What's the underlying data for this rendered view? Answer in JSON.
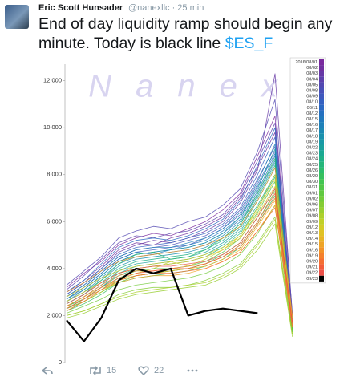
{
  "tweet": {
    "author": "Eric Scott Hunsader",
    "handle_line": "@nanexllc · 25 min",
    "text": "End of day liquidity ramp should begin any minute. Today is black line ",
    "hashtag": "$ES_F",
    "retweets": 15,
    "likes": 22
  },
  "chart_data": {
    "type": "line",
    "watermark": "Nanex",
    "ylim": [
      0,
      12500
    ],
    "yticks": [
      0,
      {
        "value": 2000,
        "label": "2,000"
      },
      {
        "value": 4000,
        "label": "4,000"
      },
      {
        "value": 6000,
        "label": "6,000"
      },
      {
        "value": 8000,
        "label": "8,000"
      },
      {
        "value": 10000,
        "label": "10,000"
      },
      {
        "value": 12000,
        "label": "12,000"
      }
    ],
    "series": [
      {
        "name": "2016/08/01",
        "color": "#7a2a9e",
        "values": [
          3200,
          3800,
          4300,
          5000,
          5300,
          5500,
          5400,
          5700,
          6000,
          6500,
          7200,
          8800,
          10500,
          1900,
          null,
          700
        ]
      },
      {
        "name": "08/02",
        "color": "#70309f",
        "values": [
          3000,
          3500,
          4100,
          4800,
          5100,
          5000,
          5300,
          5500,
          5800,
          6200,
          7000,
          8300,
          9800,
          1700,
          null,
          650
        ]
      },
      {
        "name": "08/03",
        "color": "#6638a5",
        "values": [
          2900,
          3400,
          4000,
          4700,
          5000,
          5200,
          5100,
          5300,
          5600,
          6000,
          6800,
          8200,
          12300,
          2000,
          null,
          800
        ]
      },
      {
        "name": "08/04",
        "color": "#5c40ab",
        "values": [
          3100,
          3700,
          4400,
          5100,
          5400,
          5300,
          5500,
          5600,
          5900,
          6300,
          7100,
          8600,
          10200,
          1800,
          null,
          700
        ]
      },
      {
        "name": "08/05",
        "color": "#5248b1",
        "values": [
          3300,
          3900,
          4500,
          5300,
          5600,
          5800,
          5700,
          6000,
          6200,
          6700,
          7400,
          9000,
          11200,
          2100,
          null,
          900
        ]
      },
      {
        "name": "08/08",
        "color": "#4850b7",
        "values": [
          2800,
          3300,
          3900,
          4500,
          4800,
          4900,
          5000,
          5200,
          5400,
          5800,
          6500,
          7800,
          9200,
          1600,
          null,
          600
        ]
      },
      {
        "name": "08/09",
        "color": "#3e58bd",
        "values": [
          2700,
          3200,
          3800,
          4400,
          4700,
          4800,
          4900,
          5000,
          5300,
          5700,
          6300,
          7600,
          9000,
          1500,
          null,
          550
        ]
      },
      {
        "name": "08/10",
        "color": "#3460c0",
        "values": [
          2900,
          3400,
          4000,
          4600,
          4900,
          5000,
          5100,
          5300,
          5500,
          5900,
          6600,
          8000,
          9600,
          1700,
          null,
          600
        ]
      },
      {
        "name": "08/11",
        "color": "#2a68c2",
        "values": [
          3000,
          3500,
          4200,
          4900,
          5200,
          5300,
          5200,
          5400,
          5700,
          6100,
          6900,
          8400,
          10000,
          1800,
          null,
          650
        ]
      },
      {
        "name": "08/12",
        "color": "#2470c0",
        "values": [
          2600,
          3100,
          3700,
          4300,
          4600,
          4700,
          4800,
          4900,
          5100,
          5500,
          6100,
          7300,
          8800,
          1500,
          null,
          500
        ]
      },
      {
        "name": "08/15",
        "color": "#2078bc",
        "values": [
          2700,
          3200,
          3800,
          4400,
          4700,
          4600,
          4800,
          5000,
          5200,
          5600,
          6200,
          7500,
          8900,
          1600,
          null,
          550
        ]
      },
      {
        "name": "08/16",
        "color": "#1e80b8",
        "values": [
          2800,
          3300,
          3900,
          4500,
          4800,
          4900,
          4900,
          5100,
          5300,
          5700,
          6400,
          7700,
          9300,
          1700,
          null,
          600
        ]
      },
      {
        "name": "08/17",
        "color": "#1c88b2",
        "values": [
          2600,
          3000,
          3600,
          4200,
          4500,
          4600,
          4700,
          4800,
          5000,
          5400,
          6000,
          7200,
          8600,
          1500,
          null,
          500
        ]
      },
      {
        "name": "08/18",
        "color": "#1a90ac",
        "values": [
          2500,
          2900,
          3500,
          4100,
          4400,
          4500,
          4600,
          4700,
          4900,
          5300,
          5900,
          7100,
          8500,
          1400,
          null,
          480
        ]
      },
      {
        "name": "08/19",
        "color": "#1898a6",
        "values": [
          2700,
          3100,
          3700,
          4300,
          4600,
          4700,
          4800,
          4900,
          5100,
          5500,
          6200,
          7400,
          9100,
          1600,
          null,
          550
        ]
      },
      {
        "name": "08/22",
        "color": "#18a09c",
        "values": [
          2400,
          2800,
          3300,
          3900,
          4200,
          4300,
          4400,
          4500,
          4700,
          5100,
          5700,
          6900,
          8300,
          1400,
          null,
          450
        ]
      },
      {
        "name": "08/23",
        "color": "#1aa892",
        "values": [
          2300,
          2700,
          3200,
          3800,
          4100,
          4200,
          4300,
          4400,
          4600,
          5000,
          5600,
          6700,
          8000,
          1300,
          null,
          420
        ]
      },
      {
        "name": "08/24",
        "color": "#1eb086",
        "values": [
          2500,
          2900,
          3400,
          4000,
          4300,
          4400,
          4500,
          4600,
          4800,
          5200,
          5800,
          7000,
          8400,
          1500,
          null,
          500
        ]
      },
      {
        "name": "08/25",
        "color": "#24b67a",
        "values": [
          2400,
          2700,
          3200,
          3700,
          4000,
          4100,
          4200,
          4300,
          4500,
          4900,
          5500,
          6600,
          7900,
          1400,
          null,
          450
        ]
      },
      {
        "name": "08/26",
        "color": "#2cbc6c",
        "values": [
          2600,
          3000,
          3500,
          4200,
          4600,
          4700,
          4400,
          4500,
          4800,
          5300,
          5900,
          7200,
          8700,
          1600,
          null,
          600
        ]
      },
      {
        "name": "08/29",
        "color": "#36c05e",
        "values": [
          2200,
          2500,
          2900,
          3400,
          3600,
          3700,
          3800,
          3900,
          4100,
          4400,
          4900,
          5900,
          7100,
          1300,
          null,
          400
        ]
      },
      {
        "name": "08/30",
        "color": "#42c452",
        "values": [
          2300,
          2600,
          3000,
          3500,
          3700,
          3800,
          3900,
          4000,
          4200,
          4600,
          5100,
          6200,
          7400,
          1400,
          null,
          420
        ]
      },
      {
        "name": "08/31",
        "color": "#50c648",
        "values": [
          2400,
          2700,
          3100,
          3600,
          3900,
          4000,
          4000,
          4100,
          4300,
          4700,
          5300,
          6400,
          7700,
          1500,
          null,
          450
        ]
      },
      {
        "name": "09/01",
        "color": "#60c840",
        "values": [
          2300,
          2600,
          3000,
          3400,
          3700,
          3800,
          3900,
          4000,
          4200,
          4500,
          5000,
          6000,
          7300,
          1400,
          null,
          420
        ]
      },
      {
        "name": "09/02",
        "color": "#72ca3a",
        "values": [
          2100,
          2400,
          2700,
          3100,
          3300,
          3400,
          3500,
          3600,
          3800,
          4100,
          4600,
          5500,
          6700,
          1200,
          null,
          380
        ]
      },
      {
        "name": "09/06",
        "color": "#84cc34",
        "values": [
          2000,
          2200,
          2500,
          2900,
          3100,
          3200,
          3200,
          3300,
          3500,
          3800,
          4200,
          5100,
          6200,
          1200,
          null,
          350
        ]
      },
      {
        "name": "09/07",
        "color": "#98ce30",
        "values": [
          1900,
          2100,
          2400,
          2700,
          2900,
          3000,
          3100,
          3200,
          3300,
          3600,
          4000,
          4800,
          5900,
          1100,
          null,
          330
        ]
      },
      {
        "name": "09/08",
        "color": "#acd02c",
        "values": [
          2000,
          2200,
          2500,
          2800,
          3000,
          3100,
          3200,
          3300,
          3400,
          3700,
          4100,
          5000,
          6100,
          1200,
          null,
          350
        ]
      },
      {
        "name": "09/09",
        "color": "#c0d028",
        "values": [
          2200,
          2600,
          3000,
          3500,
          3800,
          4000,
          4300,
          4100,
          4400,
          4800,
          5400,
          6600,
          8000,
          1700,
          null,
          500
        ]
      },
      {
        "name": "09/12",
        "color": "#d2cc26",
        "values": [
          2800,
          3200,
          3600,
          3900,
          4100,
          4200,
          4300,
          4400,
          4600,
          4900,
          5400,
          6500,
          7800,
          1900,
          null,
          600
        ]
      },
      {
        "name": "09/13",
        "color": "#e0c224",
        "values": [
          2600,
          3000,
          3400,
          3800,
          4000,
          4100,
          4200,
          4300,
          4500,
          4800,
          5300,
          6300,
          7500,
          1800,
          null,
          550
        ]
      },
      {
        "name": "09/14",
        "color": "#e8b424",
        "values": [
          2400,
          2800,
          3200,
          3500,
          3700,
          3800,
          3900,
          4000,
          4100,
          4400,
          4800,
          5800,
          6900,
          1600,
          null,
          500
        ]
      },
      {
        "name": "09/15",
        "color": "#eea426",
        "values": [
          2300,
          2700,
          3100,
          3400,
          3600,
          3700,
          3700,
          3800,
          4000,
          4300,
          4700,
          5600,
          6700,
          1500,
          null,
          480
        ]
      },
      {
        "name": "09/16",
        "color": "#f29228",
        "values": [
          3000,
          3400,
          3900,
          4300,
          4500,
          4600,
          4700,
          4800,
          5000,
          5300,
          5800,
          6900,
          8300,
          2000,
          null,
          650
        ]
      },
      {
        "name": "09/19",
        "color": "#f4802c",
        "values": [
          2400,
          2800,
          3300,
          3700,
          3900,
          3900,
          4000,
          4100,
          4200,
          4500,
          4900,
          5900,
          7000,
          1600,
          null,
          500
        ]
      },
      {
        "name": "09/20",
        "color": "#f46e32",
        "values": [
          2200,
          2600,
          3100,
          3500,
          3700,
          3800,
          3800,
          3900,
          4000,
          4300,
          4700,
          5600,
          6600,
          1500,
          null,
          460
        ]
      },
      {
        "name": "09/21",
        "color": "#f25c3a",
        "values": [
          2300,
          2700,
          3200,
          3600,
          3800,
          3900,
          4000,
          4000,
          4200,
          4500,
          5000,
          6000,
          7200,
          1700,
          null,
          520
        ]
      },
      {
        "name": "09/22",
        "color": "#ec5048",
        "values": [
          2500,
          2900,
          3400,
          3800,
          4000,
          4100,
          4100,
          4200,
          4300,
          4600,
          5100,
          6200,
          7400,
          1700,
          null,
          540
        ]
      },
      {
        "name": "09/23",
        "color": "#000000",
        "values": [
          1800,
          900,
          1900,
          3500,
          4000,
          3800,
          4000,
          2000,
          2200,
          2300,
          2200,
          2100,
          null,
          null,
          null,
          null
        ]
      }
    ]
  }
}
